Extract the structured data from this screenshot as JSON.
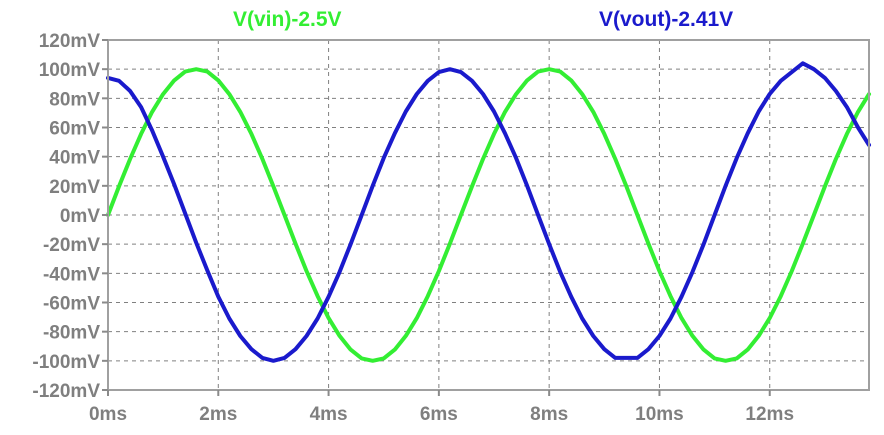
{
  "chart_data": {
    "type": "line",
    "xlabel": "",
    "ylabel": "",
    "xlim": [
      0,
      13.8
    ],
    "ylim": [
      -120,
      120
    ],
    "x_ticks": [
      {
        "value": 0,
        "label": "0ms"
      },
      {
        "value": 2,
        "label": "2ms"
      },
      {
        "value": 4,
        "label": "4ms"
      },
      {
        "value": 6,
        "label": "6ms"
      },
      {
        "value": 8,
        "label": "8ms"
      },
      {
        "value": 10,
        "label": "10ms"
      },
      {
        "value": 12,
        "label": "12ms"
      }
    ],
    "y_ticks": [
      {
        "value": 120,
        "label": "120mV"
      },
      {
        "value": 100,
        "label": "100mV"
      },
      {
        "value": 80,
        "label": "80mV"
      },
      {
        "value": 60,
        "label": "60mV"
      },
      {
        "value": 40,
        "label": "40mV"
      },
      {
        "value": 20,
        "label": "20mV"
      },
      {
        "value": 0,
        "label": "0mV"
      },
      {
        "value": -20,
        "label": "-20mV"
      },
      {
        "value": -40,
        "label": "-40mV"
      },
      {
        "value": -60,
        "label": "-60mV"
      },
      {
        "value": -80,
        "label": "-80mV"
      },
      {
        "value": -100,
        "label": "-100mV"
      },
      {
        "value": -120,
        "label": "-120mV"
      }
    ],
    "grid": true,
    "series": [
      {
        "name": "V(vin)-2.5V",
        "color": "#33ee33",
        "x": [
          0,
          0.2,
          0.4,
          0.6,
          0.8,
          1.0,
          1.2,
          1.4,
          1.6,
          1.8,
          2.0,
          2.2,
          2.4,
          2.6,
          2.8,
          3.0,
          3.2,
          3.4,
          3.6,
          3.8,
          4.0,
          4.2,
          4.4,
          4.6,
          4.8,
          5.0,
          5.2,
          5.4,
          5.6,
          5.8,
          6.0,
          6.2,
          6.4,
          6.6,
          6.8,
          7.0,
          7.2,
          7.4,
          7.6,
          7.8,
          8.0,
          8.2,
          8.4,
          8.6,
          8.8,
          9.0,
          9.2,
          9.4,
          9.6,
          9.8,
          10.0,
          10.2,
          10.4,
          10.6,
          10.8,
          11.0,
          11.2,
          11.4,
          11.6,
          11.8,
          12.0,
          12.2,
          12.4,
          12.6,
          12.8,
          13.0,
          13.2,
          13.4,
          13.6,
          13.8
        ],
        "y": [
          0,
          19.6,
          38.4,
          55.6,
          70.7,
          82.9,
          92.3,
          98.3,
          100,
          98.3,
          92.3,
          82.9,
          70.7,
          55.6,
          38.4,
          19.6,
          0,
          -19.6,
          -38.4,
          -55.6,
          -70.7,
          -82.9,
          -92.3,
          -98.3,
          -100,
          -98.3,
          -92.3,
          -82.9,
          -70.7,
          -55.6,
          -38.4,
          -19.6,
          0,
          19.6,
          38.4,
          55.6,
          70.7,
          82.9,
          92.3,
          98.3,
          100,
          98.3,
          92.3,
          82.9,
          70.7,
          55.6,
          38.4,
          19.6,
          0,
          -19.6,
          -38.4,
          -55.6,
          -70.7,
          -82.9,
          -92.3,
          -98.3,
          -100,
          -98.3,
          -92.3,
          -82.9,
          -70.7,
          -55.6,
          -38.4,
          -19.6,
          0,
          19.6,
          38.4,
          55.6,
          70.7,
          82.9
        ]
      },
      {
        "name": "V(vout)-2.41V",
        "color": "#1a1acc",
        "x": [
          0,
          0.2,
          0.4,
          0.6,
          0.8,
          1.0,
          1.2,
          1.4,
          1.6,
          1.8,
          2.0,
          2.2,
          2.4,
          2.6,
          2.8,
          3.0,
          3.2,
          3.4,
          3.6,
          3.8,
          4.0,
          4.2,
          4.4,
          4.6,
          4.8,
          5.0,
          5.2,
          5.4,
          5.6,
          5.8,
          6.0,
          6.2,
          6.4,
          6.6,
          6.8,
          7.0,
          7.2,
          7.4,
          7.6,
          7.8,
          8.0,
          8.2,
          8.4,
          8.6,
          8.8,
          9.0,
          9.2,
          9.4,
          9.6,
          9.8,
          10.0,
          10.2,
          10.4,
          10.6,
          10.8,
          11.0,
          11.2,
          11.4,
          11.6,
          11.8,
          12.0,
          12.2,
          12.4,
          12.6,
          12.8,
          13.0,
          13.2,
          13.4,
          13.6,
          13.8
        ],
        "y": [
          94,
          92,
          85,
          74,
          58,
          40,
          21,
          1,
          -19,
          -38,
          -56,
          -71,
          -83,
          -92,
          -98,
          -100,
          -98,
          -92,
          -83,
          -71,
          -56,
          -39,
          -20,
          0,
          20,
          39,
          56,
          71,
          83,
          92,
          98,
          100,
          98,
          92,
          83,
          71,
          56,
          39,
          20,
          0,
          -20,
          -39,
          -56,
          -71,
          -83,
          -92,
          -98,
          -98,
          -98,
          -92,
          -83,
          -71,
          -56,
          -39,
          -20,
          0,
          20,
          39,
          56,
          71,
          83,
          92,
          98,
          104,
          100,
          94,
          85,
          74,
          60,
          48
        ]
      }
    ]
  }
}
